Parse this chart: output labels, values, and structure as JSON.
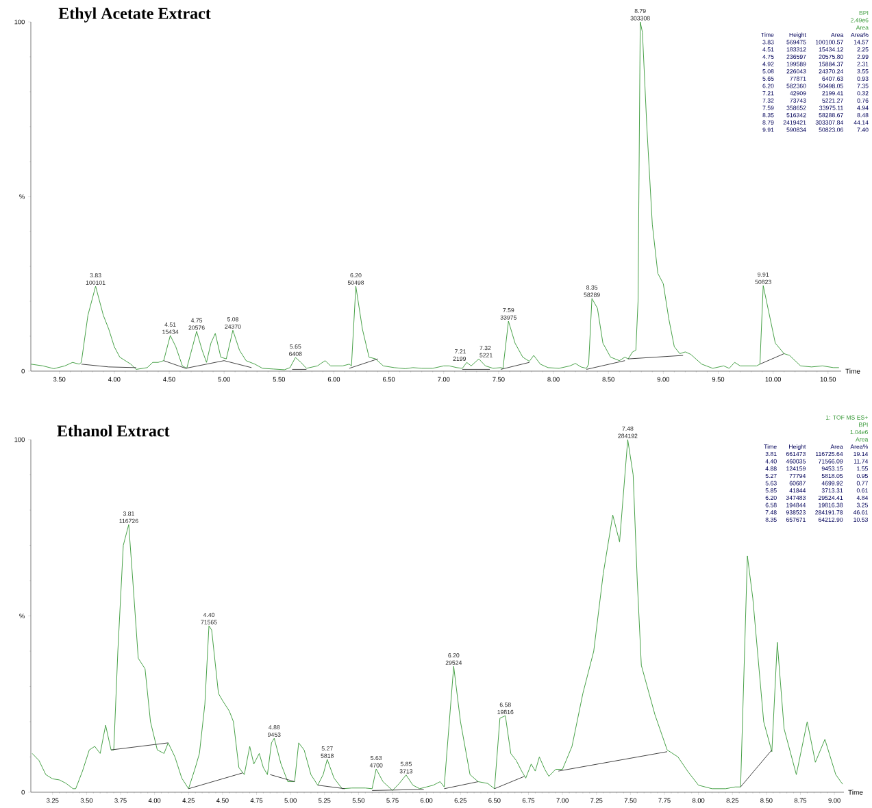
{
  "chart_data": [
    {
      "type": "line",
      "title": "Ethyl Acetate Extract",
      "xlabel": "Time",
      "xlim": [
        3.24,
        10.62
      ],
      "ylim": [
        0,
        100
      ],
      "xticks": [
        {
          "value": 3.5,
          "label": "3.50"
        },
        {
          "value": 4.0,
          "label": "4.00"
        },
        {
          "value": 4.5,
          "label": "4.50"
        },
        {
          "value": 5.0,
          "label": "5.00"
        },
        {
          "value": 5.5,
          "label": "5.50"
        },
        {
          "value": 6.0,
          "label": "6.00"
        },
        {
          "value": 6.5,
          "label": "6.50"
        },
        {
          "value": 7.0,
          "label": "7.00"
        },
        {
          "value": 7.5,
          "label": "7.50"
        },
        {
          "value": 8.0,
          "label": "8.00"
        },
        {
          "value": 8.5,
          "label": "8.50"
        },
        {
          "value": 9.0,
          "label": "9.00"
        },
        {
          "value": 9.5,
          "label": "9.50"
        },
        {
          "value": 10.0,
          "label": "10.00"
        },
        {
          "value": 10.5,
          "label": "10.50"
        }
      ],
      "yticks": [
        0,
        {
          "value": 50,
          "label": "%"
        },
        100
      ],
      "series": [
        {
          "color": "#3a9a3a",
          "x": [
            3.24,
            3.35,
            3.45,
            3.55,
            3.62,
            3.68,
            3.7,
            3.76,
            3.83,
            3.9,
            3.95,
            4.0,
            4.05,
            4.1,
            4.15,
            4.2,
            4.3,
            4.35,
            4.4,
            4.45,
            4.51,
            4.56,
            4.62,
            4.66,
            4.75,
            4.8,
            4.84,
            4.88,
            4.92,
            4.97,
            5.02,
            5.08,
            5.14,
            5.2,
            5.28,
            5.35,
            5.45,
            5.55,
            5.6,
            5.65,
            5.7,
            5.75,
            5.85,
            5.92,
            5.97,
            6.02,
            6.08,
            6.14,
            6.16,
            6.2,
            6.26,
            6.32,
            6.38,
            6.45,
            6.55,
            6.65,
            6.72,
            6.8,
            6.9,
            7.0,
            7.05,
            7.12,
            7.17,
            7.21,
            7.25,
            7.32,
            7.38,
            7.45,
            7.52,
            7.54,
            7.59,
            7.65,
            7.72,
            7.78,
            7.82,
            7.88,
            7.95,
            8.05,
            8.15,
            8.2,
            8.25,
            8.3,
            8.32,
            8.35,
            8.4,
            8.45,
            8.52,
            8.6,
            8.65,
            8.68,
            8.72,
            8.75,
            8.77,
            8.79,
            8.81,
            8.85,
            8.9,
            8.95,
            9.0,
            9.05,
            9.1,
            9.15,
            9.2,
            9.25,
            9.35,
            9.45,
            9.55,
            9.6,
            9.65,
            9.7,
            9.8,
            9.85,
            9.88,
            9.91,
            9.96,
            10.02,
            10.1,
            10.15,
            10.25,
            10.35,
            10.45,
            10.55,
            10.6
          ],
          "values": [
            2,
            1.5,
            0.7,
            1.5,
            2.5,
            2,
            2.5,
            16,
            24.3,
            16,
            12,
            7,
            4,
            3,
            2,
            0.5,
            1,
            2.5,
            2.5,
            3,
            10.2,
            7,
            1.5,
            0.8,
            11.4,
            6,
            2.5,
            8,
            10.8,
            4,
            3.5,
            11.7,
            6,
            3,
            2,
            0.8,
            0.6,
            0.4,
            1,
            3.9,
            2.5,
            0.8,
            1.5,
            3,
            1.5,
            1.5,
            1.5,
            2,
            1.5,
            24.3,
            12,
            4,
            3.5,
            1.5,
            1,
            0.7,
            1,
            0.8,
            0.8,
            1.5,
            1.5,
            1,
            0.8,
            2.5,
            1.5,
            3.5,
            1.5,
            0.8,
            1,
            0.8,
            14.3,
            8,
            4,
            2.8,
            4.5,
            2,
            1,
            0.8,
            1.5,
            2.2,
            1.2,
            0.8,
            2,
            20.8,
            18,
            8,
            4,
            3,
            4,
            3.5,
            5.5,
            6,
            20,
            100,
            97,
            70,
            42,
            28,
            25,
            15,
            7,
            5,
            5.5,
            4.8,
            2,
            0.8,
            1.5,
            0.8,
            2.5,
            1.5,
            1.5,
            1.5,
            2,
            24.5,
            17,
            8,
            5,
            4.5,
            1.5,
            1.2,
            1.5,
            1,
            1
          ]
        },
        {
          "color": "#333333",
          "x": [
            3.7,
            3.95,
            4.2,
            4.3,
            4.45,
            4.65,
            5.0,
            5.25,
            5.4,
            5.62,
            5.75,
            5.9,
            6.14,
            6.4,
            6.8,
            7.17,
            7.42,
            7.48,
            7.52,
            7.78,
            8.0,
            8.3,
            8.65,
            8.665,
            8.68,
            9.18,
            9.5,
            9.88,
            10.1
          ],
          "values": [
            2,
            1.2,
            1,
            null,
            3,
            0.8,
            3,
            1,
            null,
            0.5,
            0.5,
            null,
            0.8,
            3.5,
            null,
            0.5,
            0.5,
            null,
            0.5,
            2.5,
            null,
            0.5,
            3,
            null,
            3.5,
            4.5,
            null,
            2,
            5
          ]
        }
      ],
      "annotations": [
        {
          "text": "3.83",
          "x": 3.83,
          "y": 24.3
        },
        {
          "text": "100101",
          "x": 3.83,
          "y": 24.3
        },
        {
          "text": "4.51",
          "x": 4.51,
          "y": 10.2
        },
        {
          "text": "15434",
          "x": 4.51,
          "y": 10.2
        },
        {
          "text": "4.75",
          "x": 4.75,
          "y": 11.4
        },
        {
          "text": "20576",
          "x": 4.75,
          "y": 11.4
        },
        {
          "text": "5.08",
          "x": 5.08,
          "y": 11.7
        },
        {
          "text": "24370",
          "x": 5.08,
          "y": 11.7
        },
        {
          "text": "5.65",
          "x": 5.65,
          "y": 3.9
        },
        {
          "text": "6408",
          "x": 5.65,
          "y": 3.9
        },
        {
          "text": "6.20",
          "x": 6.2,
          "y": 24.3
        },
        {
          "text": "50498",
          "x": 6.2,
          "y": 24.3
        },
        {
          "text": "7.21",
          "x": 7.21,
          "y": 2.5
        },
        {
          "text": "2199",
          "x": 7.21,
          "y": 2.5
        },
        {
          "text": "7.32",
          "x": 7.32,
          "y": 3.5
        },
        {
          "text": "5221",
          "x": 7.32,
          "y": 3.5
        },
        {
          "text": "7.59",
          "x": 7.59,
          "y": 14.3
        },
        {
          "text": "33975",
          "x": 7.59,
          "y": 14.3
        },
        {
          "text": "8.35",
          "x": 8.35,
          "y": 20.8
        },
        {
          "text": "58289",
          "x": 8.35,
          "y": 20.8
        },
        {
          "text": "8.79",
          "x": 8.79,
          "y": 100
        },
        {
          "text": "303308",
          "x": 8.79,
          "y": 100
        },
        {
          "text": "9.91",
          "x": 9.91,
          "y": 24.5
        },
        {
          "text": "50823",
          "x": 9.91,
          "y": 24.5
        },
        "BPI",
        "2.49e6",
        "Area",
        "Time",
        "Height",
        "Area",
        "Area%",
        "3.83",
        "569475",
        "100100.57",
        "14.57",
        "4.51",
        "183312",
        "15434.12",
        "2.25",
        "4.75",
        "236597",
        "20575.80",
        "2.99",
        "4.92",
        "199589",
        "15884.37",
        "2.31",
        "5.08",
        "226043",
        "24370.24",
        "3.55",
        "5.65",
        "77871",
        "6407.63",
        "0.93",
        "6.20",
        "582360",
        "50498.05",
        "7.35",
        "7.21",
        "42909",
        "2199.41",
        "0.32",
        "7.32",
        "73743",
        "5221.27",
        "0.76",
        "7.59",
        "358652",
        "33975.11",
        "4.94",
        "8.35",
        "516342",
        "58288.67",
        "8.48",
        "8.79",
        "2419421",
        "303307.84",
        "44.14",
        "9.91",
        "590834",
        "50823.06",
        "7.40"
      ]
    },
    {
      "type": "line",
      "title": "Ethanol Extract",
      "xlabel": "Time",
      "xlim": [
        3.09,
        9.07
      ],
      "ylim": [
        0,
        100
      ],
      "xticks": [
        {
          "value": 3.25,
          "label": "3.25"
        },
        {
          "value": 3.5,
          "label": "3.50"
        },
        {
          "value": 3.75,
          "label": "3.75"
        },
        {
          "value": 4.0,
          "label": "4.00"
        },
        {
          "value": 4.25,
          "label": "4.25"
        },
        {
          "value": 4.5,
          "label": "4.50"
        },
        {
          "value": 4.75,
          "label": "4.75"
        },
        {
          "value": 5.0,
          "label": "5.00"
        },
        {
          "value": 5.25,
          "label": "5.25"
        },
        {
          "value": 5.5,
          "label": "5.50"
        },
        {
          "value": 5.75,
          "label": "5.75"
        },
        {
          "value": 6.0,
          "label": "6.00"
        },
        {
          "value": 6.25,
          "label": "6.25"
        },
        {
          "value": 6.5,
          "label": "6.50"
        },
        {
          "value": 6.75,
          "label": "6.75"
        },
        {
          "value": 7.0,
          "label": "7.00"
        },
        {
          "value": 7.25,
          "label": "7.25"
        },
        {
          "value": 7.5,
          "label": "7.50"
        },
        {
          "value": 7.75,
          "label": "7.75"
        },
        {
          "value": 8.0,
          "label": "8.00"
        },
        {
          "value": 8.25,
          "label": "8.25"
        },
        {
          "value": 8.5,
          "label": "8.50"
        },
        {
          "value": 8.75,
          "label": "8.75"
        },
        {
          "value": 9.0,
          "label": "9.00"
        }
      ],
      "yticks": [
        0,
        {
          "value": 50,
          "label": "%"
        },
        100
      ],
      "series": [
        {
          "color": "#3a9a3a",
          "x": [
            3.1,
            3.15,
            3.2,
            3.25,
            3.3,
            3.35,
            3.4,
            3.42,
            3.47,
            3.52,
            3.56,
            3.6,
            3.64,
            3.68,
            3.7,
            3.73,
            3.77,
            3.81,
            3.84,
            3.88,
            3.93,
            3.97,
            4.02,
            4.07,
            4.1,
            4.15,
            4.2,
            4.25,
            4.3,
            4.33,
            4.37,
            4.4,
            4.42,
            4.47,
            4.5,
            4.55,
            4.58,
            4.62,
            4.66,
            4.7,
            4.73,
            4.77,
            4.8,
            4.83,
            4.86,
            4.88,
            4.93,
            4.98,
            5.03,
            5.06,
            5.1,
            5.15,
            5.2,
            5.24,
            5.27,
            5.32,
            5.38,
            5.45,
            5.55,
            5.6,
            5.63,
            5.68,
            5.75,
            5.8,
            5.85,
            5.9,
            5.95,
            6.0,
            6.05,
            6.1,
            6.13,
            6.2,
            6.25,
            6.32,
            6.38,
            6.45,
            6.5,
            6.54,
            6.58,
            6.62,
            6.66,
            6.7,
            6.73,
            6.77,
            6.8,
            6.83,
            6.87,
            6.9,
            6.95,
            7.0,
            7.07,
            7.15,
            7.23,
            7.3,
            7.37,
            7.42,
            7.48,
            7.52,
            7.55,
            7.58,
            7.68,
            7.77,
            7.85,
            7.92,
            8.0,
            8.1,
            8.2,
            8.27,
            8.31,
            8.36,
            8.4,
            8.48,
            8.54,
            8.58,
            8.63,
            8.72,
            8.8,
            8.86,
            8.93,
            9.01,
            9.06
          ],
          "values": [
            11,
            9,
            5,
            3.8,
            3.5,
            2.5,
            1,
            1,
            6,
            12,
            13,
            11,
            19,
            12,
            12,
            40,
            70,
            75.9,
            60,
            38,
            35,
            20,
            12,
            11,
            14,
            10,
            4,
            1,
            7,
            11,
            25,
            47.2,
            46,
            28,
            26,
            23,
            20,
            7,
            5,
            13,
            8,
            11,
            7,
            5,
            14,
            15.3,
            8,
            3,
            3,
            14,
            12,
            5,
            2,
            5,
            9.3,
            4,
            1,
            1.2,
            1.2,
            1,
            6.6,
            3,
            0.5,
            2.5,
            4.9,
            2,
            1,
            1.5,
            2,
            3,
            1.5,
            35.7,
            20,
            5,
            3,
            2.5,
            1,
            21,
            21.7,
            11,
            9,
            6,
            4,
            8,
            6,
            10,
            6.5,
            4.5,
            6.5,
            6.5,
            13,
            28,
            40,
            62,
            78.6,
            71,
            100,
            90,
            60,
            36,
            22,
            12,
            10,
            6,
            2,
            1,
            1,
            1.5,
            1.5,
            67,
            55,
            20,
            11.5,
            42.5,
            18,
            5,
            20,
            8.5,
            15,
            5,
            2.3
          ]
        },
        {
          "color": "#333333",
          "x": [
            3.68,
            4.1,
            4.2,
            4.25,
            4.65,
            4.75,
            4.85,
            5.03,
            5.1,
            5.2,
            5.4,
            5.5,
            5.6,
            5.98,
            6.05,
            6.13,
            6.38,
            6.45,
            6.5,
            6.72,
            6.8,
            6.97,
            7.77,
            8.0,
            8.31,
            8.54
          ],
          "values": [
            12,
            14,
            null,
            1,
            5.5,
            null,
            5,
            3,
            null,
            2,
            1,
            null,
            0.5,
            0.8,
            null,
            1,
            3,
            null,
            1,
            4.5,
            null,
            6,
            11.5,
            null,
            1.5,
            12
          ]
        }
      ],
      "annotations": [
        {
          "text": "3.81",
          "x": 3.81,
          "y": 75.9
        },
        {
          "text": "116726",
          "x": 3.81,
          "y": 75.9
        },
        {
          "text": "4.40",
          "x": 4.4,
          "y": 47.2
        },
        {
          "text": "71565",
          "x": 4.4,
          "y": 47.2
        },
        {
          "text": "4.88",
          "x": 4.88,
          "y": 15.3
        },
        {
          "text": "9453",
          "x": 4.88,
          "y": 15.3
        },
        {
          "text": "5.27",
          "x": 5.27,
          "y": 9.3
        },
        {
          "text": "5818",
          "x": 5.27,
          "y": 9.3
        },
        {
          "text": "5.63",
          "x": 5.63,
          "y": 6.6
        },
        {
          "text": "4700",
          "x": 5.63,
          "y": 6.6
        },
        {
          "text": "5.85",
          "x": 5.85,
          "y": 4.9
        },
        {
          "text": "3713",
          "x": 5.85,
          "y": 4.9
        },
        {
          "text": "6.20",
          "x": 6.2,
          "y": 35.7
        },
        {
          "text": "29524",
          "x": 6.2,
          "y": 35.7
        },
        {
          "text": "6.58",
          "x": 6.58,
          "y": 21.7
        },
        {
          "text": "19816",
          "x": 6.58,
          "y": 21.7
        },
        {
          "text": "7.48",
          "x": 7.48,
          "y": 100
        },
        {
          "text": "284192",
          "x": 7.48,
          "y": 100
        },
        "1: TOF MS ES+",
        "BPI",
        "1.04e6",
        "Area",
        "Time",
        "Height",
        "Area",
        "Area%",
        "3.81",
        "661473",
        "116725.64",
        "19.14",
        "4.40",
        "460035",
        "71566.09",
        "11.74",
        "4.88",
        "124159",
        "9453.15",
        "1.55",
        "5.27",
        "77794",
        "5818.05",
        "0.95",
        "5.63",
        "60687",
        "4699.92",
        "0.77",
        "5.85",
        "41844",
        "3713.31",
        "0.61",
        "6.20",
        "347483",
        "29524.41",
        "4.84",
        "6.58",
        "194844",
        "19816.38",
        "3.25",
        "7.48",
        "938523",
        "284191.78",
        "46.61",
        "8.35",
        "657671",
        "64212.90",
        "10.53"
      ]
    }
  ]
}
